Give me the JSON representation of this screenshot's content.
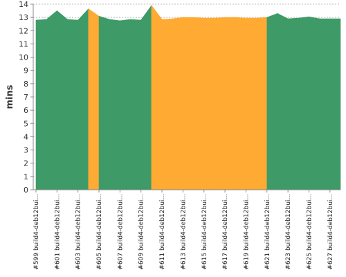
{
  "chart_data": {
    "type": "area",
    "title": "",
    "xlabel": "",
    "ylabel": "mins",
    "ylim": [
      0,
      14
    ],
    "yticks": [
      0,
      1,
      2,
      3,
      4,
      5,
      6,
      7,
      8,
      9,
      10,
      11,
      12,
      13,
      14
    ],
    "grid": true,
    "colors": {
      "success": "#3e9a67",
      "unstable": "#ffaa33"
    },
    "x": [
      "#599",
      "#600",
      "#601",
      "#602",
      "#603",
      "#604",
      "#605",
      "#606",
      "#607",
      "#608",
      "#609",
      "#610",
      "#611",
      "#612",
      "#613",
      "#614",
      "#615",
      "#616",
      "#617",
      "#618",
      "#619",
      "#620",
      "#621",
      "#622",
      "#623",
      "#624",
      "#625",
      "#626",
      "#627",
      "#628"
    ],
    "x_tick_labels": [
      "#599 build4-deb12bui...",
      "#601 build4-deb12bui...",
      "#603 build4-deb12bui...",
      "#605 build4-deb12bui...",
      "#607 build4-deb12bui...",
      "#609 build4-deb12bui...",
      "#611 build4-deb12bui...",
      "#613 build4-deb12bui...",
      "#615 build4-deb12bui...",
      "#617 build4-deb12bui...",
      "#619 build4-deb12bui...",
      "#621 build4-deb12bui...",
      "#623 build4-deb12bui...",
      "#625 build4-deb12bui...",
      "#627 build4-deb12bui..."
    ],
    "values": [
      12.8,
      12.85,
      13.5,
      12.85,
      12.8,
      13.65,
      13.1,
      12.85,
      12.75,
      12.85,
      12.8,
      13.9,
      12.85,
      12.9,
      13.0,
      13.0,
      12.95,
      12.95,
      13.0,
      13.0,
      12.95,
      12.95,
      13.0,
      13.3,
      12.9,
      12.95,
      13.05,
      12.9,
      12.9,
      12.9
    ],
    "status": [
      "success",
      "success",
      "success",
      "success",
      "success",
      "unstable",
      "success",
      "success",
      "success",
      "success",
      "success",
      "unstable",
      "unstable",
      "unstable",
      "unstable",
      "unstable",
      "unstable",
      "unstable",
      "unstable",
      "unstable",
      "unstable",
      "unstable",
      "success",
      "success",
      "success",
      "success",
      "success",
      "success",
      "success",
      "success"
    ]
  }
}
